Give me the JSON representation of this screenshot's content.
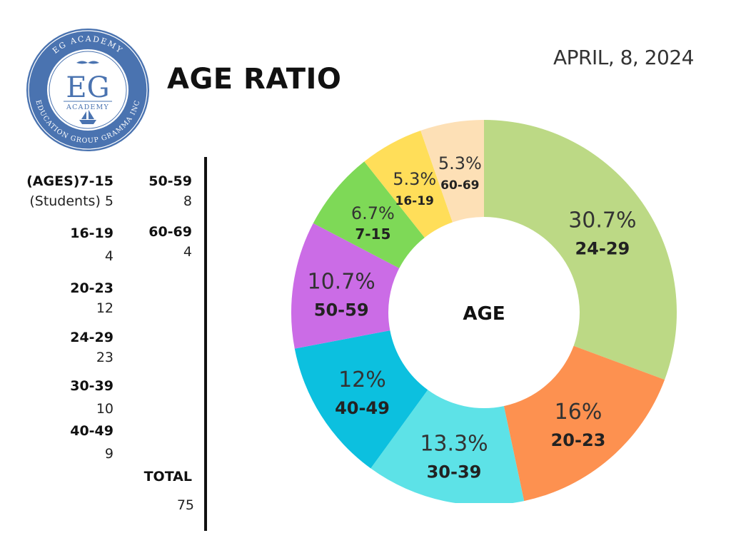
{
  "header": {
    "title": "AGE RATIO",
    "date": "APRIL, 8, 2024"
  },
  "logo": {
    "ring_top": "EG ACADEMY",
    "ring_bottom": "EDUCATION GROUP GRAMMA INC",
    "monogram": "EG",
    "word": "ACADEMY",
    "color": "#3f6aa8"
  },
  "table": {
    "col1": [
      {
        "label": "(AGES)7-15",
        "value": "(Students) 5"
      },
      {
        "label": "16-19",
        "value": "4"
      },
      {
        "label": "20-23",
        "value": "12"
      },
      {
        "label": "24-29",
        "value": "23"
      },
      {
        "label": "30-39",
        "value": "10"
      },
      {
        "label": "40-49",
        "value": "9"
      }
    ],
    "col2": [
      {
        "label": "50-59",
        "value": "8"
      },
      {
        "label": "60-69",
        "value": "4"
      }
    ],
    "total_label": "TOTAL",
    "total_value": "75"
  },
  "chart_data": {
    "type": "pie",
    "donut": true,
    "center_label": "AGE",
    "slices": [
      {
        "label": "24-29",
        "pct_label": "30.7%",
        "value": 23,
        "color": "#bcd985"
      },
      {
        "label": "20-23",
        "pct_label": "16%",
        "value": 12,
        "color": "#fd9150"
      },
      {
        "label": "30-39",
        "pct_label": "13.3%",
        "value": 10,
        "color": "#5de2e7"
      },
      {
        "label": "40-49",
        "pct_label": "12%",
        "value": 9,
        "color": "#0cc0df"
      },
      {
        "label": "50-59",
        "pct_label": "10.7%",
        "value": 8,
        "color": "#cb6ce6"
      },
      {
        "label": "7-15",
        "pct_label": "6.7%",
        "value": 5,
        "color": "#7ed957"
      },
      {
        "label": "16-19",
        "pct_label": "5.3%",
        "value": 4,
        "color": "#ffde59"
      },
      {
        "label": "60-69",
        "pct_label": "5.3%",
        "value": 4,
        "color": "#fde0b6"
      }
    ]
  }
}
